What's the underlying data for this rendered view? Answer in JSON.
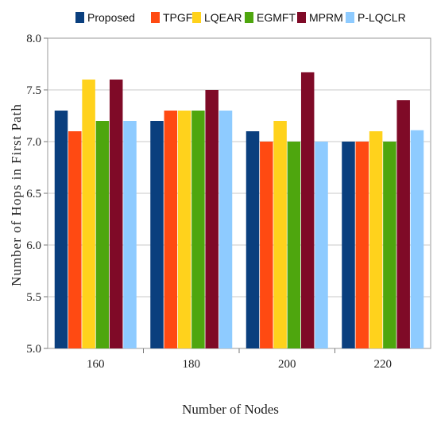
{
  "chart_data": {
    "type": "bar",
    "title": "",
    "xlabel": "Number of Nodes",
    "ylabel": "Number of Hops in First Path",
    "categories": [
      "160",
      "180",
      "200",
      "220"
    ],
    "ylim": [
      5.0,
      8.0
    ],
    "yticks": [
      "5.0",
      "5.5",
      "6.0",
      "6.5",
      "7.0",
      "7.5",
      "8.0"
    ],
    "grid": true,
    "legend_position": "top",
    "series": [
      {
        "name": "Proposed",
        "color": "#0a3f7e",
        "values": [
          7.3,
          7.2,
          7.1,
          7.0
        ]
      },
      {
        "name": "TPGF",
        "color": "#ff4a12",
        "values": [
          7.1,
          7.3,
          7.0,
          7.0
        ]
      },
      {
        "name": "LQEAR",
        "color": "#ffd21c",
        "values": [
          7.6,
          7.3,
          7.2,
          7.1
        ]
      },
      {
        "name": "EGMFT",
        "color": "#4ea60e",
        "values": [
          7.2,
          7.3,
          7.0,
          7.0
        ]
      },
      {
        "name": "MPRM",
        "color": "#7f0a27",
        "values": [
          7.6,
          7.5,
          7.67,
          7.4
        ]
      },
      {
        "name": "P-LQCLR",
        "color": "#8ecbff",
        "values": [
          7.2,
          7.3,
          7.0,
          7.11
        ]
      }
    ]
  }
}
